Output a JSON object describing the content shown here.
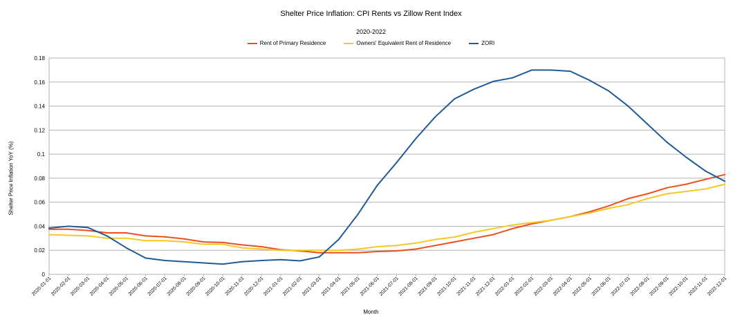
{
  "chart_data": {
    "type": "line",
    "title": "Shelter Price Inflation: CPI Rents vs Zillow Rent Index",
    "subtitle": "2020-2022",
    "xlabel": "Month",
    "ylabel": "Shelter Price Inflation YoY (%)",
    "ylim": [
      0,
      0.18
    ],
    "yticks": [
      "0",
      "0.02",
      "0.04",
      "0.06",
      "0.08",
      "0.1",
      "0.12",
      "0.14",
      "0.16",
      "0.18"
    ],
    "grid": true,
    "legend_position": "top",
    "x": [
      "2020-01-01",
      "2020-02-01",
      "2020-03-01",
      "2020-04-01",
      "2020-05-01",
      "2020-06-01",
      "2020-07-01",
      "2020-08-01",
      "2020-09-01",
      "2020-10-01",
      "2020-11-01",
      "2020-12-01",
      "2021-01-01",
      "2021-02-01",
      "2021-03-01",
      "2021-04-01",
      "2021-05-01",
      "2021-06-01",
      "2021-07-01",
      "2021-08-01",
      "2021-09-01",
      "2021-10-01",
      "2021-11-01",
      "2021-12-01",
      "2022-01-01",
      "2022-02-01",
      "2022-03-01",
      "2022-04-01",
      "2022-05-01",
      "2022-06-01",
      "2022-07-01",
      "2022-08-01",
      "2022-09-01",
      "2022-10-01",
      "2022-11-01",
      "2022-12-01"
    ],
    "series": [
      {
        "name": "Rent of Primary Residence",
        "color": "#ee4d1c",
        "values": [
          0.0375,
          0.0375,
          0.0365,
          0.0345,
          0.0345,
          0.032,
          0.0312,
          0.0295,
          0.027,
          0.0265,
          0.0245,
          0.023,
          0.0205,
          0.0195,
          0.018,
          0.018,
          0.018,
          0.019,
          0.0195,
          0.021,
          0.024,
          0.027,
          0.03,
          0.033,
          0.038,
          0.042,
          0.045,
          0.048,
          0.052,
          0.057,
          0.063,
          0.067,
          0.072,
          0.075,
          0.079,
          0.083
        ]
      },
      {
        "name": "Owners' Equivalent Rent of Residence",
        "color": "#f7c823",
        "values": [
          0.033,
          0.0325,
          0.032,
          0.03,
          0.03,
          0.028,
          0.028,
          0.027,
          0.025,
          0.025,
          0.022,
          0.021,
          0.02,
          0.02,
          0.02,
          0.02,
          0.021,
          0.023,
          0.024,
          0.026,
          0.029,
          0.031,
          0.035,
          0.038,
          0.041,
          0.043,
          0.045,
          0.048,
          0.051,
          0.055,
          0.058,
          0.063,
          0.067,
          0.069,
          0.071,
          0.075
        ]
      },
      {
        "name": "ZORI",
        "color": "#1f5a96",
        "values": [
          0.0385,
          0.04,
          0.039,
          0.032,
          0.022,
          0.0135,
          0.0115,
          0.0105,
          0.0095,
          0.0085,
          0.0105,
          0.0115,
          0.0122,
          0.0112,
          0.0145,
          0.029,
          0.05,
          0.074,
          0.093,
          0.113,
          0.131,
          0.146,
          0.154,
          0.1605,
          0.1635,
          0.17,
          0.17,
          0.169,
          0.1615,
          0.1525,
          0.14,
          0.125,
          0.11,
          0.0975,
          0.086,
          0.0775
        ]
      }
    ]
  }
}
